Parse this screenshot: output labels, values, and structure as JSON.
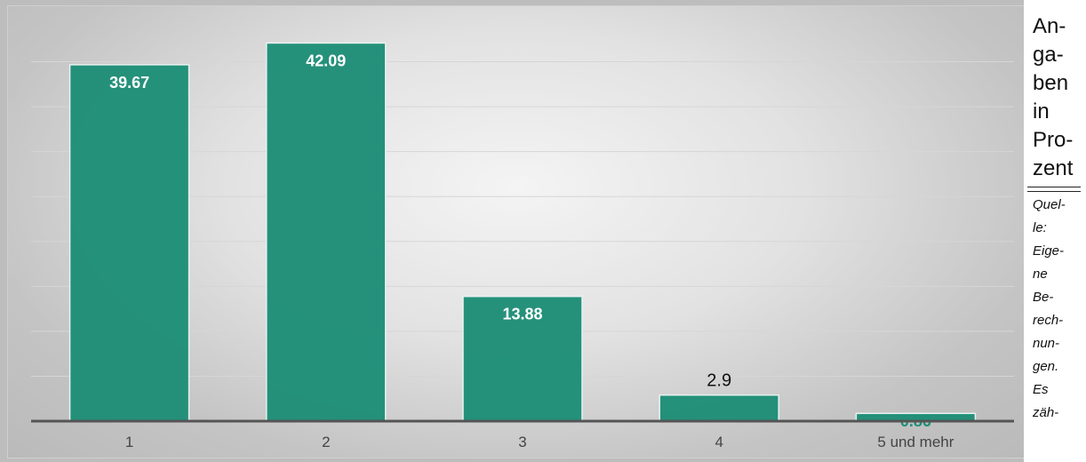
{
  "chart_data": {
    "type": "bar",
    "categories": [
      "1",
      "2",
      "3",
      "4",
      "5 und mehr"
    ],
    "values": [
      39.67,
      42.09,
      13.88,
      2.9,
      0.86
    ],
    "value_labels": [
      "39.67",
      "42.09",
      "13.88",
      "2.9",
      "0.86"
    ],
    "ylim": [
      0,
      45
    ],
    "grid": true,
    "colors": {
      "bar": "#1f8f78",
      "axis": "#555555"
    }
  },
  "side_note": {
    "unit_text": "An-\nga-\nben\nin\nPro-\nzent",
    "source_text": "Quel-\nle:\nEige-\nne\nBe-\nrech-\nnun-\ngen.\nEs\nzäh-"
  }
}
